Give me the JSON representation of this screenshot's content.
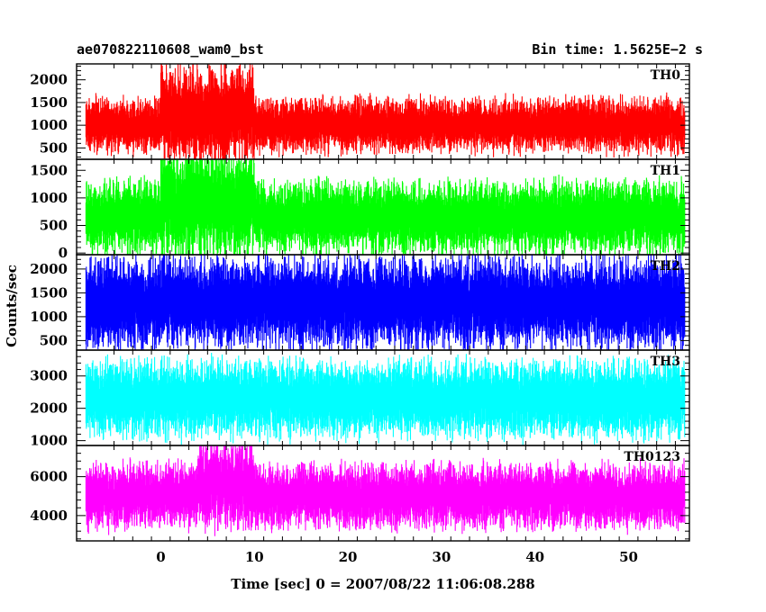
{
  "header": {
    "title": "ae070822110608_wam0_bst",
    "bin_time": "Bin time: 1.5625E−2 s"
  },
  "chart_data": {
    "type": "line",
    "xlabel": "Time [sec] 0 = 2007/08/22 11:06:08.288",
    "ylabel": "Counts/sec",
    "xlim": [
      -9,
      56.5
    ],
    "x_range_data": [
      -8,
      56
    ],
    "bin_time_s": 0.015625,
    "x_ticks": [
      0,
      10,
      20,
      30,
      40,
      50
    ],
    "panels": [
      {
        "name": "TH0",
        "color": "#ff0000",
        "ylim": [
          250,
          2350
        ],
        "y_ticks": [
          500,
          1000,
          1500,
          2000
        ],
        "typical_range": [
          500,
          1500
        ],
        "burst": {
          "window": [
            0,
            10
          ],
          "range": [
            350,
            2100
          ]
        }
      },
      {
        "name": "TH1",
        "color": "#00ff00",
        "ylim": [
          -30,
          1700
        ],
        "y_ticks": [
          0,
          500,
          1000,
          1500
        ],
        "typical_range": [
          100,
          1200
        ],
        "burst": {
          "window": [
            0,
            10
          ],
          "range": [
            50,
            1700
          ]
        }
      },
      {
        "name": "TH2",
        "color": "#0000ff",
        "ylim": [
          300,
          2300
        ],
        "y_ticks": [
          500,
          1000,
          1500,
          2000
        ],
        "typical_range": [
          500,
          2100
        ]
      },
      {
        "name": "TH3",
        "color": "#00ffff",
        "ylim": [
          850,
          3800
        ],
        "y_ticks": [
          1000,
          2000,
          3000
        ],
        "typical_range": [
          1300,
          3300
        ]
      },
      {
        "name": "TH0123",
        "color": "#ff00ff",
        "ylim": [
          2700,
          7600
        ],
        "y_ticks": [
          4000,
          6000
        ],
        "typical_range": [
          3600,
          6400
        ],
        "burst": {
          "window": [
            4,
            10
          ],
          "range": [
            3700,
            7500
          ]
        }
      }
    ]
  }
}
